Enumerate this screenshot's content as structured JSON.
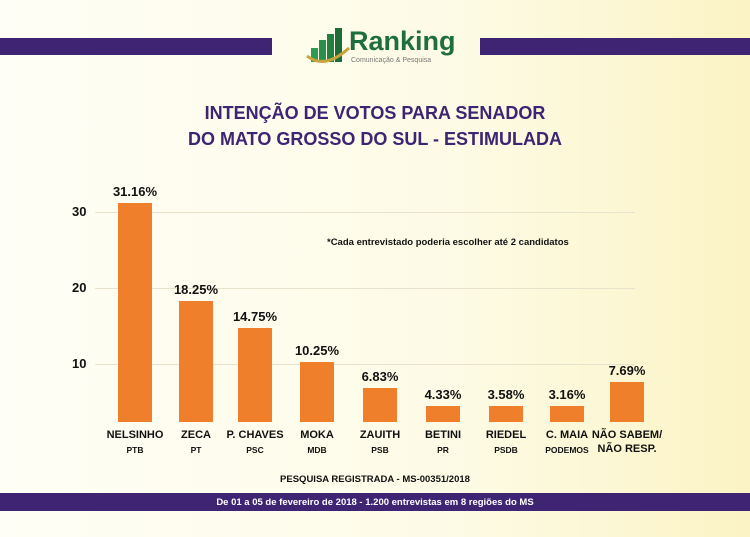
{
  "header": {
    "logo_text": "Ranking",
    "logo_sub": "Comunicação & Pesquisa"
  },
  "title_lines": [
    "INTENÇÃO DE VOTOS PARA SENADOR",
    "DO MATO GROSSO DO SUL - ESTIMULADA"
  ],
  "note": "*Cada entrevistado poderia escolher até 2 candidatos",
  "registration": "PESQUISA REGISTRADA - MS-00351/2018",
  "footer": "De 01 a 05 de fevereiro de 2018 - 1.200 entrevistas em 8 regiões do MS",
  "colors": {
    "bar": "#ef7f2b",
    "band": "#3e2473"
  },
  "chart_data": {
    "type": "bar",
    "title": "INTENÇÃO DE VOTOS PARA SENADOR DO MATO GROSSO DO SUL - ESTIMULADA",
    "categories": [
      "NELSINHO",
      "ZECA",
      "P. CHAVES",
      "MOKA",
      "ZAUITH",
      "BETINI",
      "RIEDEL",
      "C. MAIA",
      "NÃO SABEM/"
    ],
    "sublabels": [
      "PTB",
      "PT",
      "PSC",
      "MDB",
      "PSB",
      "PR",
      "PSDB",
      "PODEMOS",
      "NÃO RESP."
    ],
    "values": [
      31.16,
      18.25,
      14.75,
      10.25,
      6.83,
      4.33,
      3.58,
      3.16,
      7.69
    ],
    "data_labels": [
      "31.16%",
      "18.25%",
      "14.75%",
      "10.25%",
      "6.83%",
      "4.33%",
      "3.58%",
      "3.16%",
      "7.69%"
    ],
    "yticks": [
      "10",
      "20",
      "30"
    ],
    "ylim": [
      0,
      33
    ],
    "grid": true
  }
}
